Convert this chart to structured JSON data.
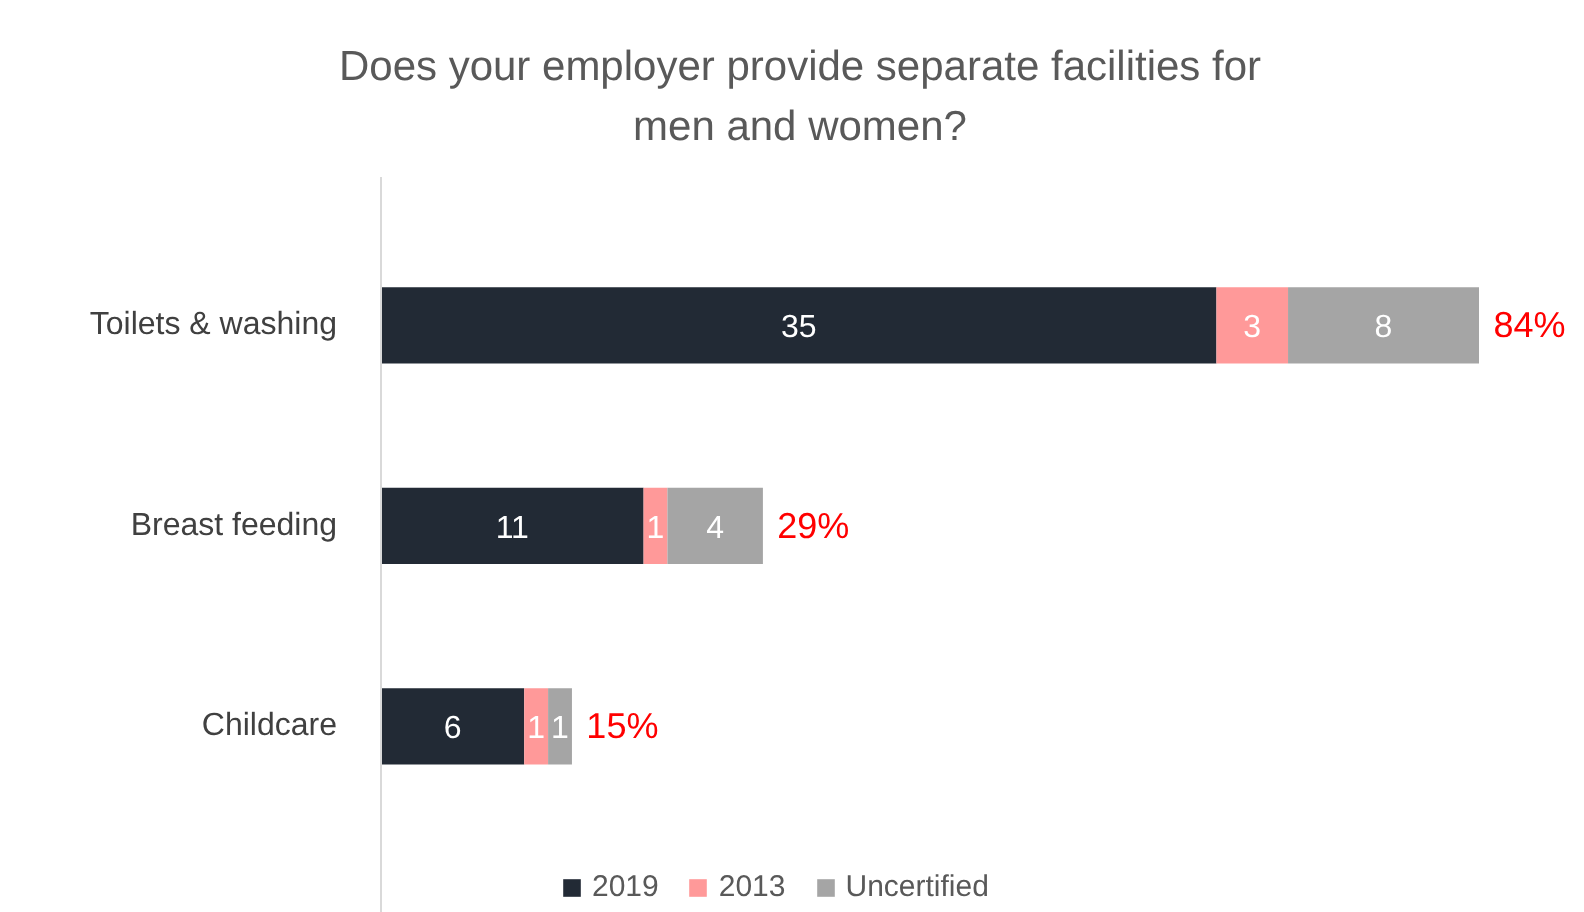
{
  "chart_data": {
    "type": "bar",
    "orientation": "horizontal",
    "stacked": true,
    "title": "Does your employer provide separate facilities for men and women?",
    "categories": [
      "Toilets & washing",
      "Breast feeding",
      "Childcare"
    ],
    "series": [
      {
        "name": "2019",
        "color": "#222a35",
        "values": [
          35,
          11,
          6
        ]
      },
      {
        "name": "2013",
        "color": "#ff9999",
        "values": [
          3,
          1,
          1
        ]
      },
      {
        "name": "Uncertified",
        "color": "#a5a5a5",
        "values": [
          8,
          4,
          1
        ]
      }
    ],
    "data_labels": true,
    "annotations": [
      {
        "text": "84%",
        "x": 46,
        "y": "Toilets & washing"
      },
      {
        "text": "29%",
        "x": 16,
        "y": "Breast feeding"
      },
      {
        "text": "15%",
        "x": 8,
        "y": "Childcare"
      }
    ],
    "legend": "bottom"
  }
}
